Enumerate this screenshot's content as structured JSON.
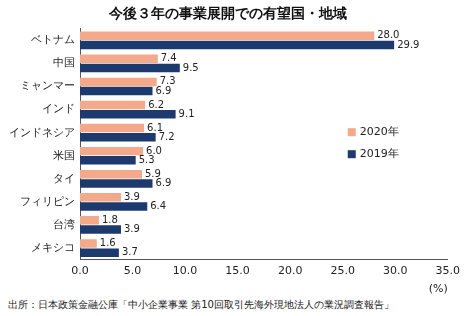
{
  "chart_data": {
    "type": "bar",
    "orientation": "horizontal",
    "title": "今後３年の事業展開での有望国・地域",
    "source": "出所：日本政策金融公庫「中小企業事業 第10回取引先海外現地法人の業況調査報告」",
    "xlabel": "(%)",
    "categories": [
      "ベトナム",
      "中国",
      "ミャンマー",
      "インド",
      "インドネシア",
      "米国",
      "タイ",
      "フィリピン",
      "台湾",
      "メキシコ"
    ],
    "series": [
      {
        "name": "2020年",
        "color": "#f4a98a",
        "values": [
          28.0,
          7.4,
          7.3,
          6.2,
          6.1,
          6.0,
          5.9,
          3.9,
          1.8,
          1.6
        ],
        "value_labels": [
          "28.0",
          "7.4",
          "7.3",
          "6.2",
          "6.1",
          "6.0",
          "5.9",
          "3.9",
          "1.8",
          "1.6"
        ]
      },
      {
        "name": "2019年",
        "color": "#1c3a6e",
        "values": [
          29.9,
          9.5,
          6.9,
          9.1,
          7.2,
          5.3,
          6.9,
          6.4,
          3.9,
          3.7
        ],
        "value_labels": [
          "29.9",
          "9.5",
          "6.9",
          "9.1",
          "7.2",
          "5.3",
          "6.9",
          "6.4",
          "3.9",
          "3.7"
        ]
      }
    ],
    "xlim": [
      0,
      35
    ],
    "xticks": [
      {
        "value": 0,
        "label": "0.0"
      },
      {
        "value": 5,
        "label": "5.0"
      },
      {
        "value": 10,
        "label": "10.0"
      },
      {
        "value": 15,
        "label": "15.0"
      },
      {
        "value": 20,
        "label": "20.0"
      },
      {
        "value": 25,
        "label": "25.0"
      },
      {
        "value": 30,
        "label": "30.0"
      },
      {
        "value": 35,
        "label": "35.0"
      }
    ],
    "grid": false,
    "legend": "right",
    "data_labels": true
  }
}
